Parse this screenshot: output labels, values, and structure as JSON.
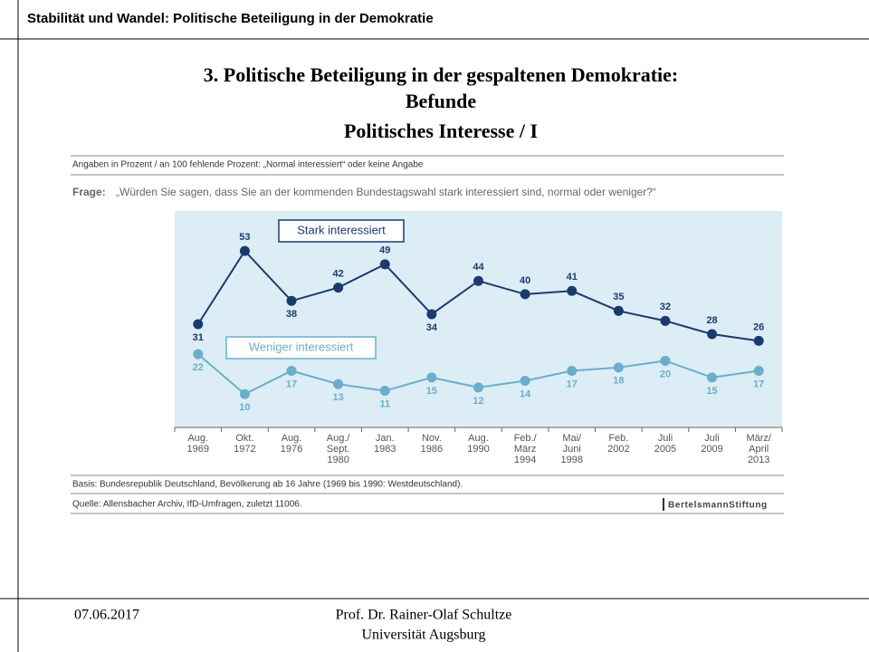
{
  "header": {
    "title": "Stabilität und Wandel: Politische Beteiligung in der Demokratie"
  },
  "slide": {
    "title_lines": [
      "3. Politische Beteiligung in der gespaltenen Demokratie:",
      "Befunde",
      "Politisches Interesse / I"
    ]
  },
  "chart_data": {
    "type": "line",
    "note": "Angaben in Prozent / an 100 fehlende Prozent: „Normal interessiert“ oder keine Angabe",
    "question_label": "Frage:",
    "question": "„Würden Sie sagen, dass Sie an der kommenden Bundestagswahl stark interessiert sind, normal oder weniger?“",
    "categories": [
      "Aug.\n1969",
      "Okt.\n1972",
      "Aug.\n1976",
      "Aug./\nSept.\n1980",
      "Jan.\n1983",
      "Nov.\n1986",
      "Aug.\n1990",
      "Feb./\nMärz\n1994",
      "Mai/\nJuni\n1998",
      "Feb.\n2002",
      "Juli\n2005",
      "Juli\n2009",
      "März/\nApril\n2013"
    ],
    "series": [
      {
        "name": "Stark interessiert",
        "color": "#1b3a6e",
        "values": [
          31,
          53,
          38,
          42,
          49,
          34,
          44,
          40,
          41,
          35,
          32,
          28,
          26
        ]
      },
      {
        "name": "Weniger interessiert",
        "color": "#6aaecb",
        "values": [
          22,
          10,
          17,
          13,
          11,
          15,
          12,
          14,
          17,
          18,
          20,
          15,
          17
        ]
      }
    ],
    "ylim": [
      0,
      65
    ],
    "basis": "Basis: Bundesrepublik Deutschland, Bevölkerung ab 16 Jahre (1969 bis 1990: Westdeutschland).",
    "source": "Quelle: Allensbacher Archiv, IfD-Umfragen, zuletzt 11006.",
    "logo": "BertelsmannStiftung"
  },
  "footer": {
    "date": "07.06.2017",
    "author": "Prof. Dr. Rainer-Olaf Schultze",
    "institution": "Universität Augsburg"
  }
}
